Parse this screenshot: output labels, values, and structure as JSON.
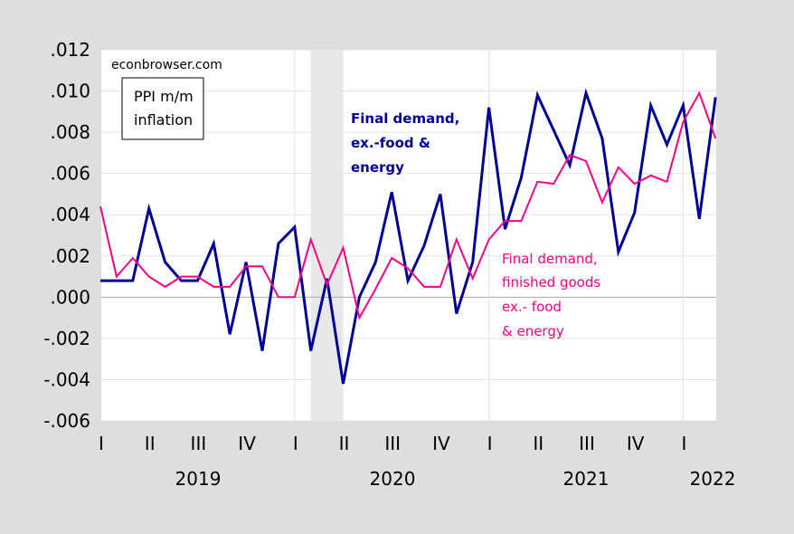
{
  "chart_data": {
    "type": "line",
    "watermark": "econbrowser.com",
    "label_box": [
      "PPI m/m",
      "inflation"
    ],
    "x_start": "2019-01",
    "x_end": "2022-03",
    "frequency": "monthly",
    "ylim": [
      -0.006,
      0.012
    ],
    "y_ticks": [
      ".012",
      ".010",
      ".008",
      ".006",
      ".004",
      ".002",
      ".000",
      "-.002",
      "-.004",
      "-.006"
    ],
    "y_tick_values": [
      0.012,
      0.01,
      0.008,
      0.006,
      0.004,
      0.002,
      0.0,
      -0.002,
      -0.004,
      -0.006
    ],
    "quarter_ticks": [
      "I",
      "II",
      "III",
      "IV",
      "I",
      "II",
      "III",
      "IV",
      "I",
      "II",
      "III",
      "IV",
      "I"
    ],
    "year_labels": [
      "2019",
      "2020",
      "2021",
      "2022"
    ],
    "grid": true,
    "recession_shading": {
      "start": "2020-02",
      "end": "2020-04",
      "color": "#e8e8e8"
    },
    "series": [
      {
        "name": "Final demand, ex.-food & energy",
        "label_lines": [
          "Final demand,",
          "ex.-food &",
          "energy"
        ],
        "color": "#000099",
        "values": [
          0.0008,
          0.0008,
          0.0008,
          0.0043,
          0.0017,
          0.0008,
          0.0008,
          0.0026,
          -0.0018,
          0.0017,
          -0.0026,
          0.0026,
          0.0034,
          -0.0026,
          0.0009,
          -0.0042,
          0.0,
          0.0017,
          0.0051,
          0.0008,
          0.0025,
          0.005,
          -0.0008,
          0.0017,
          0.0092,
          0.0033,
          0.0058,
          0.0098,
          0.0081,
          0.0064,
          0.0099,
          0.0077,
          0.0022,
          0.0041,
          0.0093,
          0.0074,
          0.0093,
          0.0038,
          0.0097
        ]
      },
      {
        "name": "Final demand, finished goods ex.- food & energy",
        "label_lines": [
          "Final demand,",
          "finished goods",
          "ex.- food",
          "& energy"
        ],
        "color": "#ff0080",
        "values": [
          0.0044,
          0.001,
          0.0019,
          0.001,
          0.0005,
          0.001,
          0.001,
          0.0005,
          0.0005,
          0.0015,
          0.0015,
          0.0,
          0.0,
          0.0028,
          0.0006,
          0.0024,
          -0.001,
          0.0004,
          0.0019,
          0.0014,
          0.0005,
          0.0005,
          0.0028,
          0.0009,
          0.0028,
          0.0037,
          0.0037,
          0.0056,
          0.0055,
          0.0069,
          0.0066,
          0.0046,
          0.0063,
          0.0055,
          0.0059,
          0.0056,
          0.0085,
          0.0099,
          0.0077
        ]
      }
    ]
  }
}
